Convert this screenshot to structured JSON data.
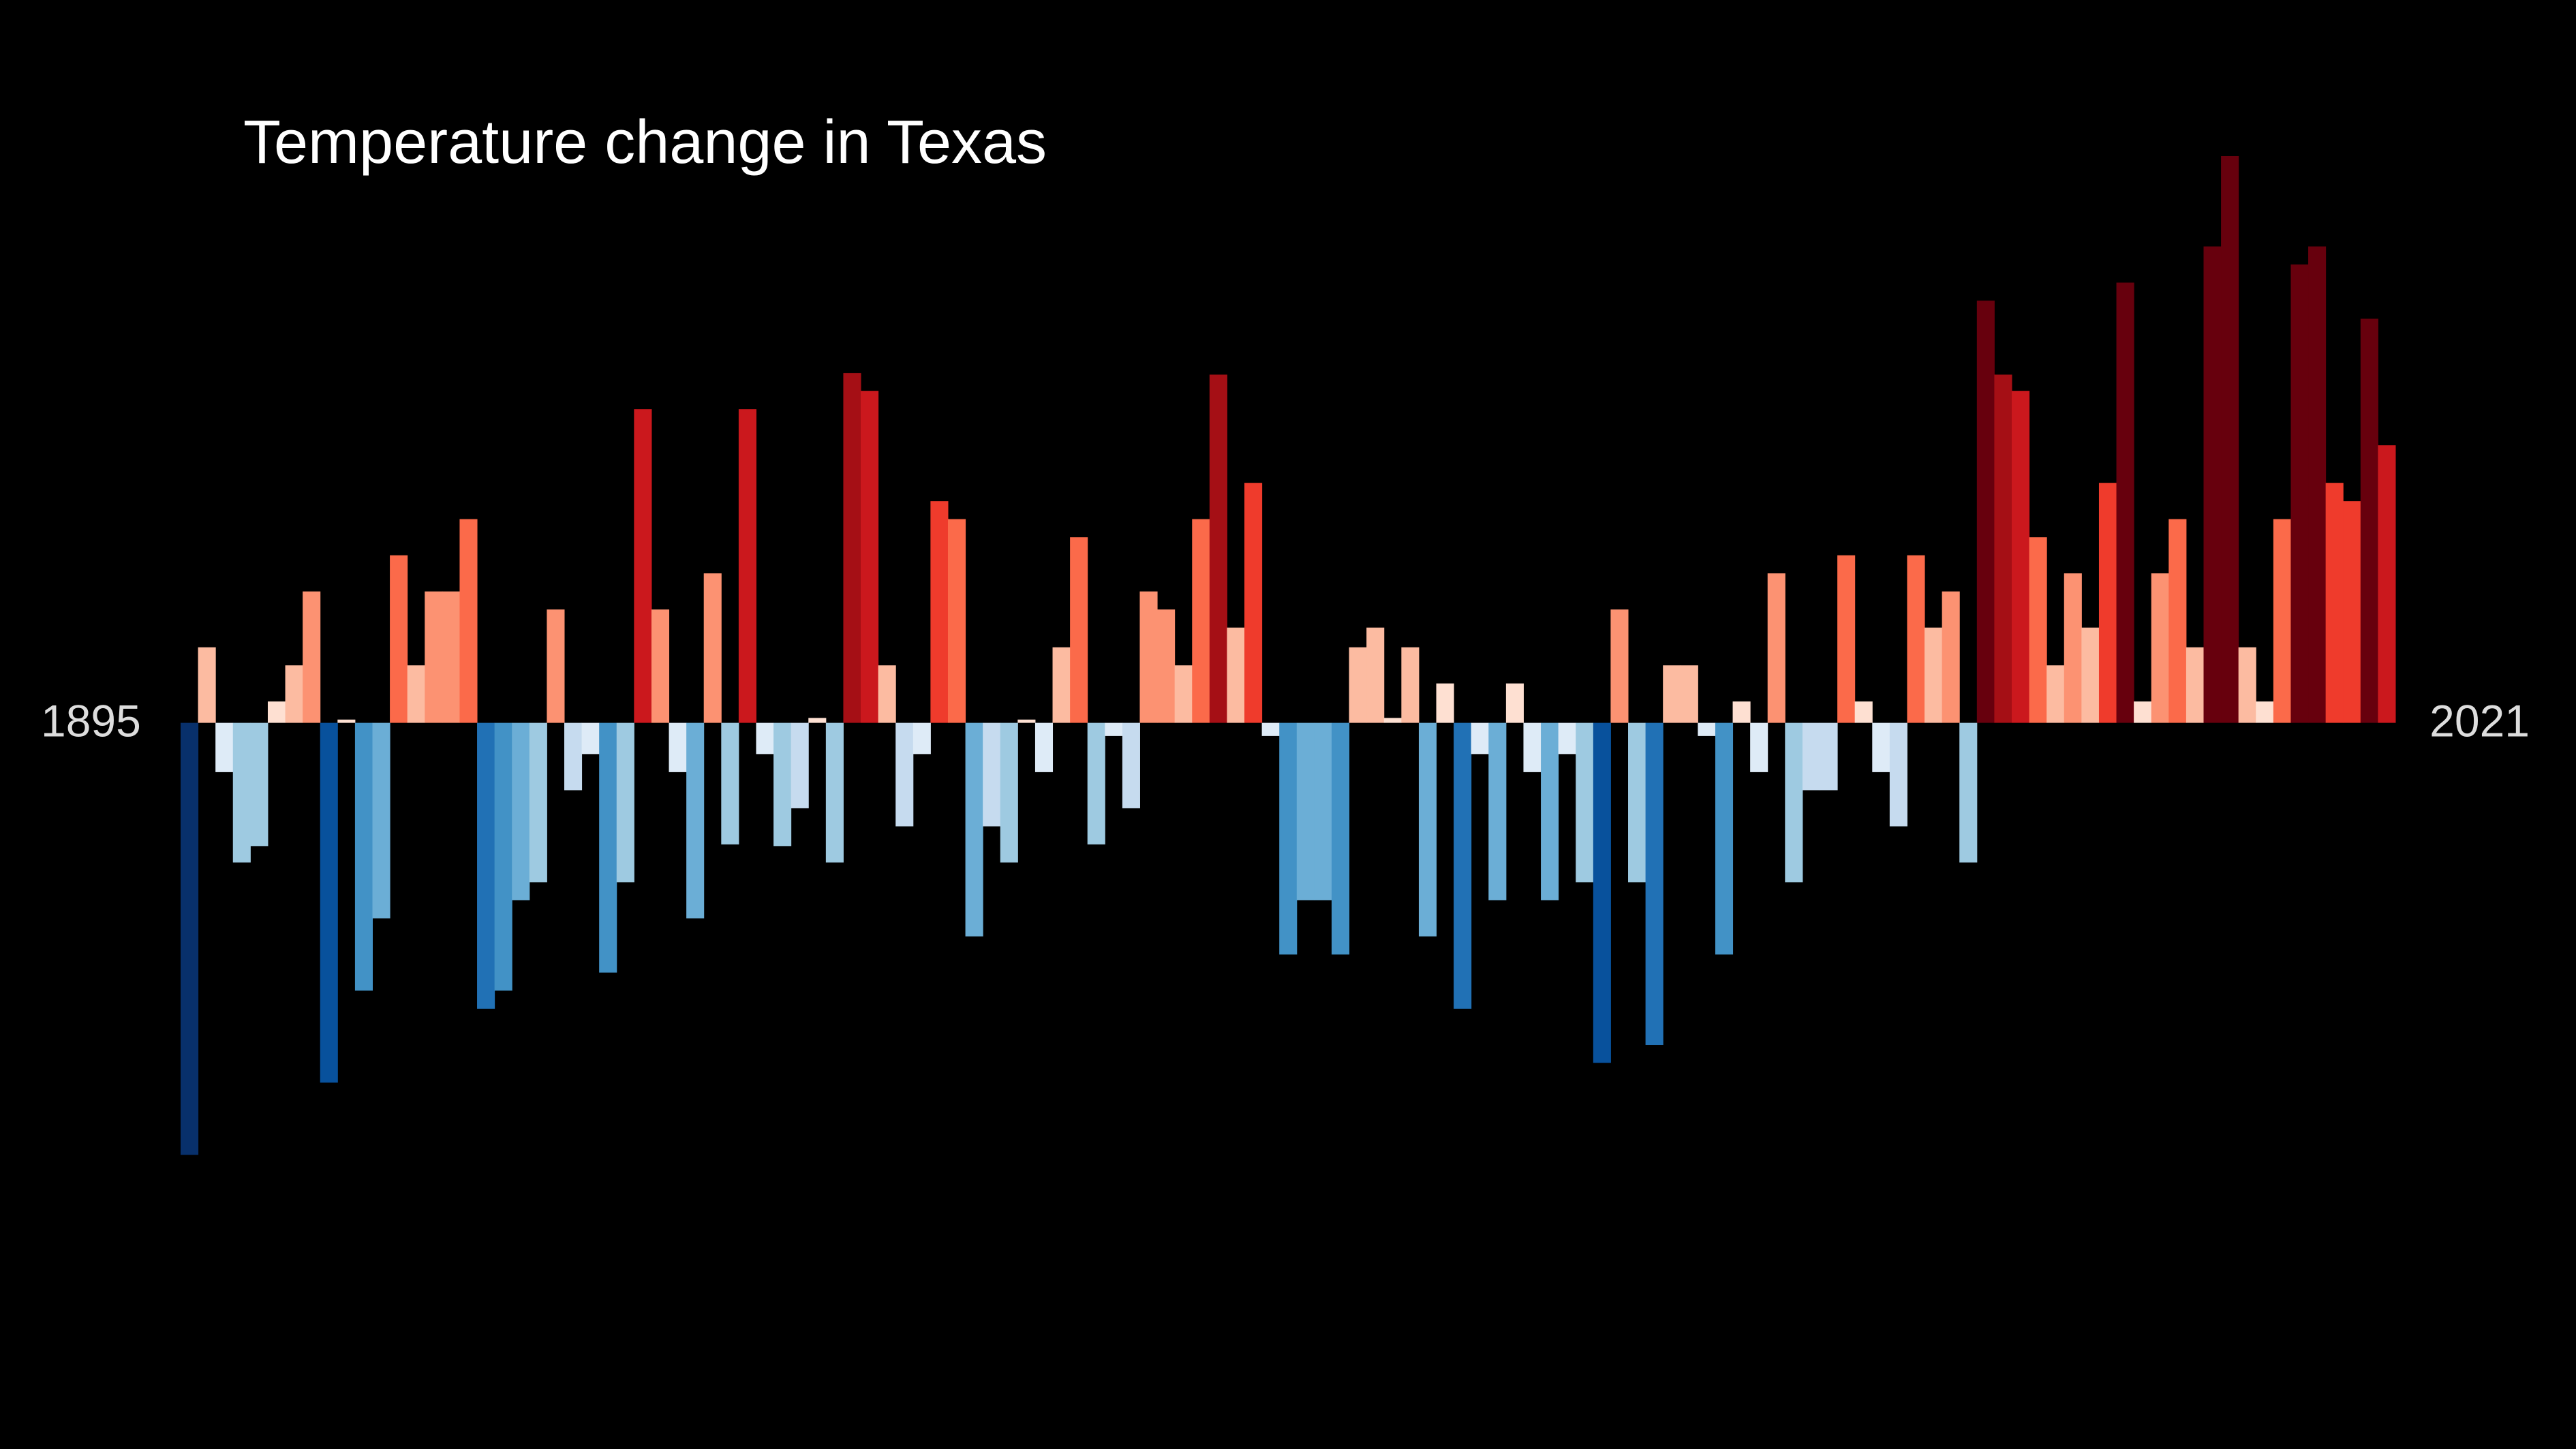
{
  "chart_data": {
    "type": "bar",
    "title": "Temperature change in Texas",
    "categories": [
      "1895",
      null,
      null,
      null,
      null,
      null,
      null,
      null,
      null,
      null,
      null,
      null,
      null,
      null,
      null,
      null,
      null,
      null,
      null,
      null,
      null,
      null,
      null,
      null,
      null,
      null,
      null,
      null,
      null,
      null,
      null,
      null,
      null,
      null,
      null,
      null,
      null,
      null,
      null,
      null,
      null,
      null,
      null,
      null,
      null,
      null,
      null,
      null,
      null,
      null,
      null,
      null,
      null,
      null,
      null,
      null,
      null,
      null,
      null,
      null,
      null,
      null,
      null,
      null,
      null,
      null,
      null,
      null,
      null,
      null,
      null,
      null,
      null,
      null,
      null,
      null,
      null,
      null,
      null,
      null,
      null,
      null,
      null,
      null,
      null,
      null,
      null,
      null,
      null,
      null,
      null,
      null,
      null,
      null,
      null,
      null,
      null,
      null,
      null,
      null,
      null,
      null,
      null,
      null,
      null,
      null,
      null,
      null,
      null,
      null,
      null,
      null,
      null,
      null,
      null,
      null,
      null,
      null,
      null,
      null,
      null,
      null,
      null,
      null,
      null,
      null,
      "2021"
    ],
    "values": [
      -2.63,
      0.46,
      -0.3,
      -0.85,
      -0.75,
      0.13,
      0.35,
      0.8,
      -2.19,
      0.02,
      -1.63,
      -1.19,
      1.02,
      0.35,
      0.8,
      0.8,
      1.24,
      -1.74,
      -1.63,
      -1.08,
      -0.97,
      0.69,
      -0.41,
      -0.19,
      -1.52,
      -0.97,
      1.91,
      0.69,
      -0.3,
      -1.19,
      0.91,
      -0.74,
      1.91,
      -0.19,
      -0.75,
      -0.52,
      0.03,
      -0.85,
      2.13,
      2.02,
      0.35,
      -0.63,
      -0.19,
      1.35,
      1.24,
      -1.3,
      -0.63,
      -0.85,
      0.02,
      -0.3,
      0.46,
      1.13,
      -0.74,
      -0.08,
      -0.52,
      0.8,
      0.69,
      0.35,
      1.24,
      2.12,
      0.58,
      1.46,
      -0.08,
      -1.41,
      -1.08,
      -1.08,
      -1.41,
      0.46,
      0.58,
      0.03,
      0.46,
      -1.3,
      0.24,
      -1.74,
      -0.19,
      -1.08,
      0.24,
      -0.3,
      -1.08,
      -0.19,
      -0.97,
      -2.07,
      0.69,
      -0.97,
      -1.96,
      0.35,
      0.35,
      -0.08,
      -1.41,
      0.13,
      -0.3,
      0.91,
      -0.97,
      -0.41,
      -0.41,
      1.02,
      0.13,
      -0.3,
      -0.63,
      1.02,
      0.58,
      0.8,
      -0.85,
      2.57,
      2.12,
      2.02,
      1.13,
      0.35,
      0.91,
      0.58,
      1.46,
      2.68,
      0.13,
      0.91,
      1.24,
      0.46,
      2.9,
      3.45,
      0.46,
      0.13,
      1.24,
      2.79,
      2.9,
      1.46,
      1.35,
      2.46,
      1.69
    ],
    "ylim": [
      -4.42,
      4.4
    ],
    "colors": [
      "#08306b",
      "#08519c",
      "#2171b5",
      "#4292c6",
      "#6baed6",
      "#9ecae1",
      "#c6dbef",
      "#deebf7",
      "#fee0d2",
      "#fcbba1",
      "#fc9272",
      "#fb6a4a",
      "#ef3b2c",
      "#cb181d",
      "#a50f15",
      "#67000d"
    ],
    "color_range": [
      -2.7,
      2.7
    ]
  }
}
